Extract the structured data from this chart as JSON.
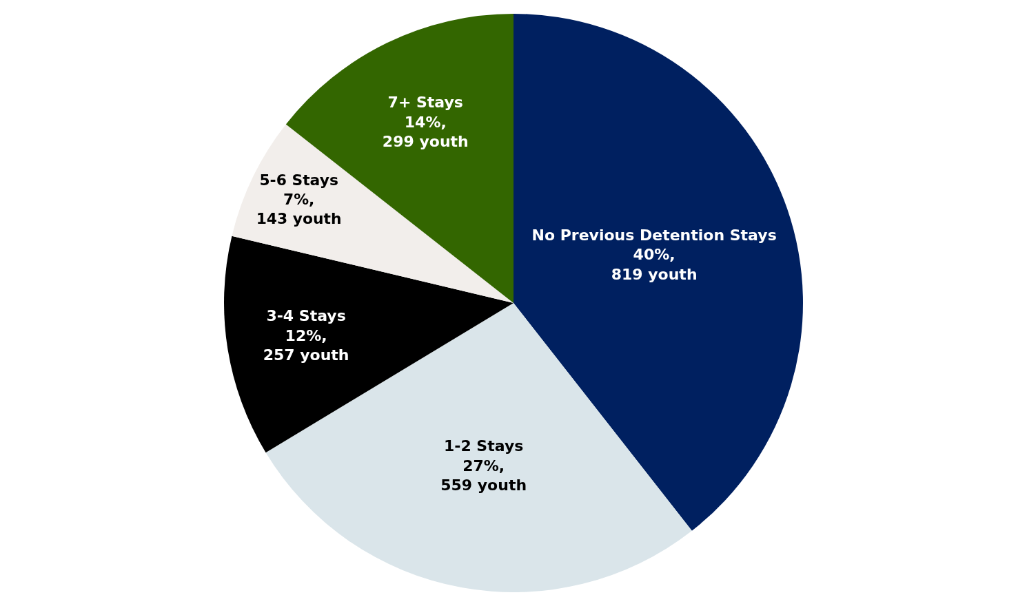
{
  "chart_data": {
    "type": "pie",
    "categories": [
      "No Previous Detention Stays",
      "1-2 Stays",
      "3-4 Stays",
      "5-6 Stays",
      "7+ Stays"
    ],
    "values": [
      819,
      559,
      257,
      143,
      299
    ],
    "value_labels": [
      "40%, 819 youth",
      "27%, 559 youth",
      "12%, 257 youth",
      "7%, 143 youth",
      "14%, 299 youth"
    ],
    "colors": [
      "#002060",
      "#dae5ea",
      "#000000",
      "#f2eeeb",
      "#336600"
    ],
    "legend": false
  }
}
